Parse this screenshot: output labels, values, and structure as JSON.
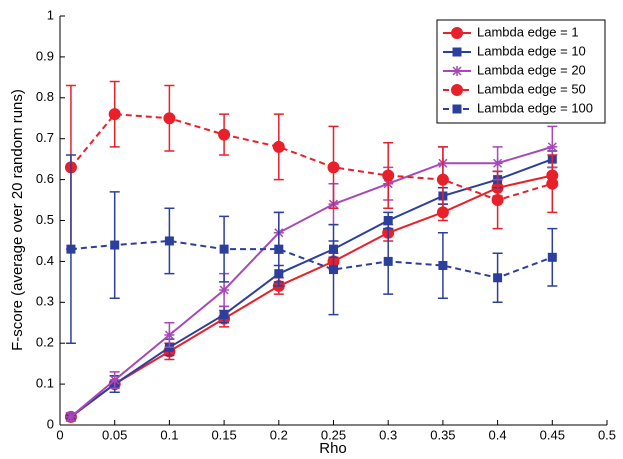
{
  "chart_data": {
    "type": "errorbar-line",
    "x_label": "Rho",
    "y_label": "F-score (average over 20 random runs)",
    "x": [
      0.01,
      0.05,
      0.1,
      0.15,
      0.2,
      0.25,
      0.3,
      0.35,
      0.4,
      0.45
    ],
    "xlim": [
      0,
      0.5
    ],
    "xticks": [
      0,
      0.05,
      0.1,
      0.15,
      0.2,
      0.25,
      0.3,
      0.35,
      0.4,
      0.45,
      0.5
    ],
    "ylim": [
      0,
      1
    ],
    "yticks": [
      0,
      0.1,
      0.2,
      0.3,
      0.4,
      0.5,
      0.6,
      0.7,
      0.8,
      0.9,
      1
    ],
    "legend": "upper right",
    "series": [
      {
        "name": "Lambda edge = 1",
        "color": "#e8202a",
        "dash": false,
        "marker": "circle",
        "values": [
          0.02,
          0.1,
          0.18,
          0.26,
          0.34,
          0.4,
          0.47,
          0.52,
          0.58,
          0.61
        ],
        "errors": [
          0.01,
          0.02,
          0.02,
          0.02,
          0.02,
          0.02,
          0.02,
          0.02,
          0.02,
          0.02
        ]
      },
      {
        "name": "Lambda edge = 10",
        "color": "#2d3f9c",
        "dash": false,
        "marker": "square",
        "values": [
          0.02,
          0.1,
          0.19,
          0.27,
          0.37,
          0.43,
          0.5,
          0.56,
          0.6,
          0.65
        ],
        "errors": [
          0.01,
          0.02,
          0.02,
          0.02,
          0.02,
          0.02,
          0.02,
          0.02,
          0.02,
          0.02
        ]
      },
      {
        "name": "Lambda edge = 20",
        "color": "#a848b8",
        "dash": false,
        "marker": "star",
        "values": [
          0.02,
          0.11,
          0.22,
          0.33,
          0.47,
          0.54,
          0.59,
          0.64,
          0.64,
          0.68
        ],
        "errors": [
          0.01,
          0.02,
          0.03,
          0.04,
          0.05,
          0.05,
          0.04,
          0.04,
          0.04,
          0.05
        ]
      },
      {
        "name": "Lambda edge = 50",
        "color": "#e8202a",
        "dash": true,
        "marker": "circle",
        "values": [
          0.63,
          0.76,
          0.75,
          0.71,
          0.68,
          0.63,
          0.61,
          0.6,
          0.55,
          0.59
        ],
        "errors": [
          0.2,
          0.08,
          0.08,
          0.05,
          0.08,
          0.1,
          0.08,
          0.08,
          0.07,
          0.07
        ]
      },
      {
        "name": "Lambda edge = 100",
        "color": "#2d3f9c",
        "dash": true,
        "marker": "square",
        "values": [
          0.43,
          0.44,
          0.45,
          0.43,
          0.43,
          0.38,
          0.4,
          0.39,
          0.36,
          0.41
        ],
        "errors": [
          0.23,
          0.13,
          0.08,
          0.08,
          0.09,
          0.11,
          0.08,
          0.08,
          0.06,
          0.07
        ]
      }
    ]
  }
}
